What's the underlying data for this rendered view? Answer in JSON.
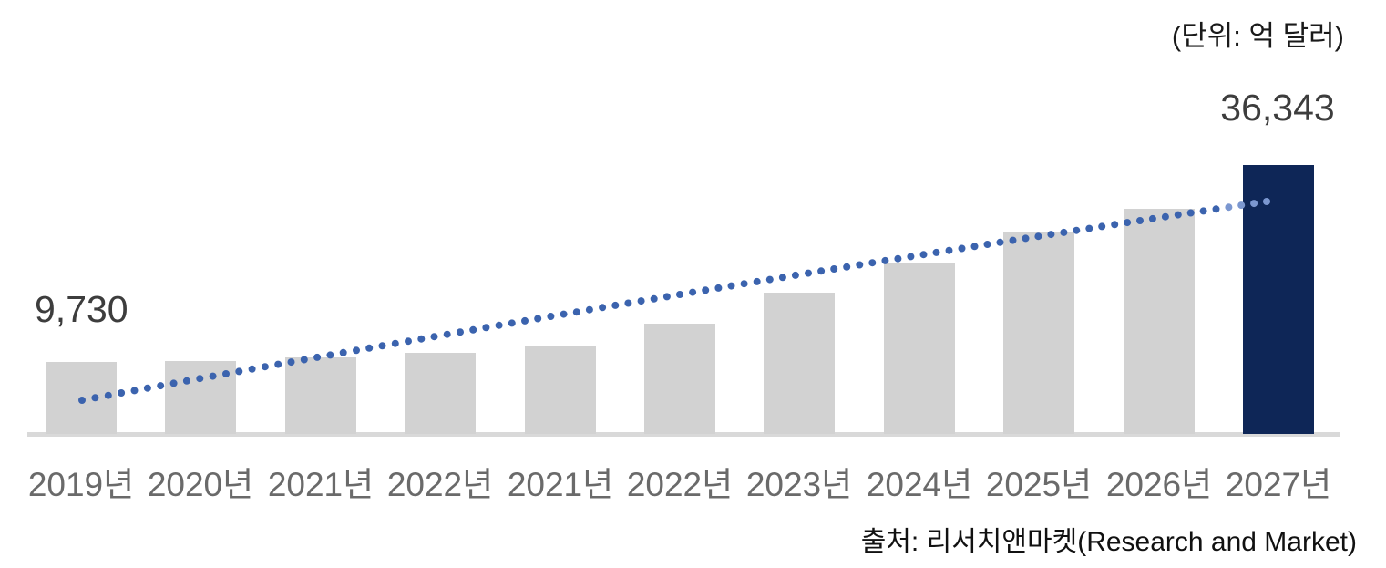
{
  "header": {
    "unit_label": "(단위: 억 달러)"
  },
  "annotations": {
    "first_bar_value": "9,730",
    "last_bar_value": "36,343"
  },
  "footer": {
    "source": "출처: 리서치앤마켓(Research and Market)"
  },
  "chart_data": {
    "type": "bar",
    "title": "",
    "xlabel": "",
    "ylabel": "",
    "unit": "억 달러",
    "categories": [
      "2019년",
      "2020년",
      "2021년",
      "2022년",
      "2021년",
      "2022년",
      "2023년",
      "2024년",
      "2025년",
      "2026년",
      "2027년"
    ],
    "values": [
      9730,
      9900,
      10300,
      11000,
      11900,
      14900,
      19100,
      23200,
      27300,
      30400,
      36343
    ],
    "labeled_values": {
      "2019년": 9730,
      "2027년": 36343
    },
    "ylim": [
      0,
      36343
    ],
    "grid": false,
    "legend": false,
    "highlight_index": 10,
    "bar_color": "#d2d2d2",
    "highlight_color": "#0e2657",
    "axis_color": "#d9d9d9",
    "tick_label_color": "#6a6a6a",
    "value_label_color": "#3d3d3d",
    "trendline": {
      "style": "dotted",
      "color": "#3b63ae",
      "forecast_color": "#7b97d0"
    }
  }
}
